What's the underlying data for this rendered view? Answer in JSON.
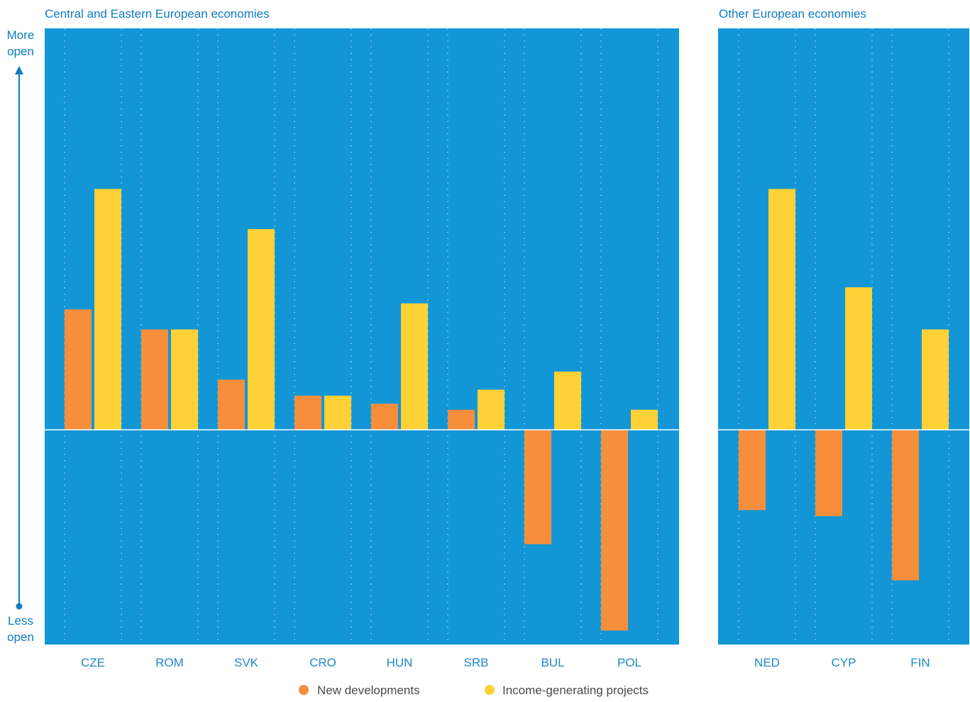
{
  "colors": {
    "panel_bg": "#1396d6",
    "new_developments": "#f68e3b",
    "income_generating": "#fed136",
    "text": "#0e7cc2",
    "baseline": "#ffffff"
  },
  "axis": {
    "top_label_line1": "More",
    "top_label_line2": "open",
    "bottom_label_line1": "Less",
    "bottom_label_line2": "open"
  },
  "chart_data": [
    {
      "type": "bar",
      "title": "Central and Eastern European economies",
      "categories": [
        "CZE",
        "ROM",
        "SVK",
        "CRO",
        "HUN",
        "SRB",
        "BUL",
        "POL"
      ],
      "series": [
        {
          "name": "New developments",
          "values": [
            3.0,
            2.5,
            1.25,
            0.85,
            0.65,
            0.5,
            -2.85,
            -5.0
          ]
        },
        {
          "name": "Income-generating projects",
          "values": [
            6.0,
            2.5,
            5.0,
            0.85,
            3.15,
            1.0,
            1.45,
            0.5
          ]
        }
      ],
      "ylim": [
        -5.35,
        10.0
      ],
      "grid": "vertical dotted",
      "legend": "bottom"
    },
    {
      "type": "bar",
      "title": "Other European economies",
      "categories": [
        "NED",
        "CYP",
        "FIN"
      ],
      "series": [
        {
          "name": "New developments",
          "values": [
            -2.0,
            -2.15,
            -3.75
          ]
        },
        {
          "name": "Income-generating projects",
          "values": [
            6.0,
            3.55,
            2.5
          ]
        }
      ],
      "ylim": [
        -5.35,
        10.0
      ],
      "grid": "vertical dotted",
      "legend": "bottom"
    }
  ],
  "legend": {
    "items": [
      "New developments",
      "Income-generating projects"
    ]
  }
}
